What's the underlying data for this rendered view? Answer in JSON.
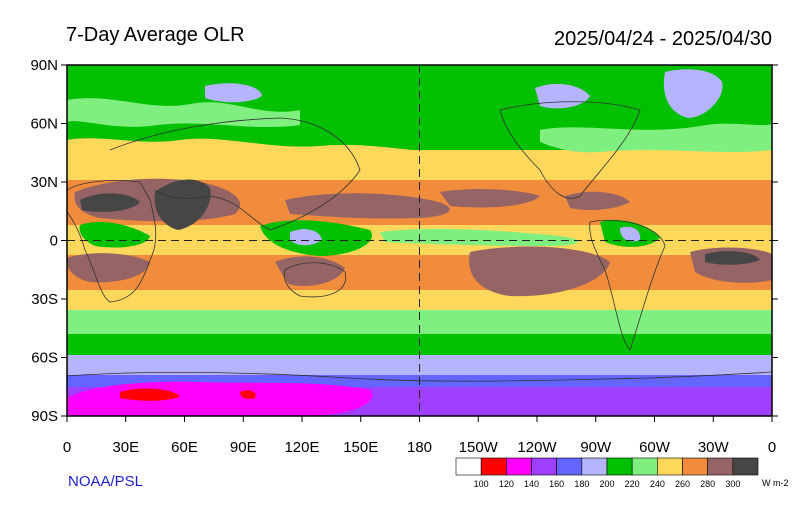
{
  "header": {
    "title": "7-Day Average OLR",
    "date_range": "2025/04/24 - 2025/04/30"
  },
  "footer": {
    "credit": "NOAA/PSL",
    "units": "W m-2"
  },
  "axes": {
    "lat_labels": [
      "90N",
      "60N",
      "30N",
      "0",
      "30S",
      "60S",
      "90S"
    ],
    "lon_labels": [
      "0",
      "30E",
      "60E",
      "90E",
      "120E",
      "150E",
      "180",
      "150W",
      "120W",
      "90W",
      "60W",
      "30W",
      "0"
    ]
  },
  "colorbar": {
    "levels": [
      "100",
      "120",
      "140",
      "160",
      "180",
      "200",
      "220",
      "240",
      "260",
      "280",
      "300"
    ],
    "colors": [
      "#ffffff",
      "#ff0000",
      "#ff00ff",
      "#9f3fff",
      "#6464ff",
      "#b4b4ff",
      "#00c000",
      "#7ff07f",
      "#ffd75a",
      "#f08c3c",
      "#966464",
      "#464646"
    ]
  },
  "map_colors": {
    "c140": "#ff00ff",
    "c160": "#9f3fff",
    "c180": "#6464ff",
    "c200": "#b4b4ff",
    "c220": "#00c000",
    "c240": "#7ff07f",
    "c260": "#ffd75a",
    "c280": "#f08c3c",
    "c300": "#966464",
    "c300p": "#464646",
    "c120": "#ff0000"
  }
}
